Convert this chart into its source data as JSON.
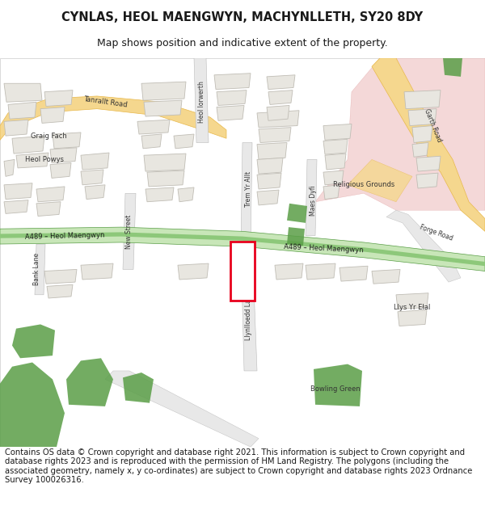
{
  "title_line1": "CYNLAS, HEOL MAENGWYN, MACHYNLLETH, SY20 8DY",
  "title_line2": "Map shows position and indicative extent of the property.",
  "footer_text": "Contains OS data © Crown copyright and database right 2021. This information is subject to Crown copyright and database rights 2023 and is reproduced with the permission of HM Land Registry. The polygons (including the associated geometry, namely x, y co-ordinates) are subject to Crown copyright and database rights 2023 Ordnance Survey 100026316.",
  "title_fontsize": 10.5,
  "subtitle_fontsize": 9,
  "footer_fontsize": 7.2,
  "bg_color": "#ffffff",
  "title_color": "#1a1a1a",
  "footer_color": "#1a1a1a",
  "map_bg": "#f8f8f8",
  "road_yellow_color": "#f5d78e",
  "road_yellow_outline": "#e8b84b",
  "road_green_fill": "#8dc87a",
  "road_green_outline": "#5a9e47",
  "road_green_light": "#c8e6b8",
  "road_minor_color": "#e8e8e8",
  "road_minor_outline": "#cccccc",
  "building_color": "#e8e6e0",
  "building_outline": "#c0bdb5",
  "green_area_color": "#5a9e47",
  "green_area_light": "#a8d090",
  "pink_area_color": "#f0c8c8",
  "pink_area_outline": "#e0a0a0",
  "highlight_color": "#e8001c",
  "text_dark": "#333333",
  "text_road": "#1a1a1a"
}
